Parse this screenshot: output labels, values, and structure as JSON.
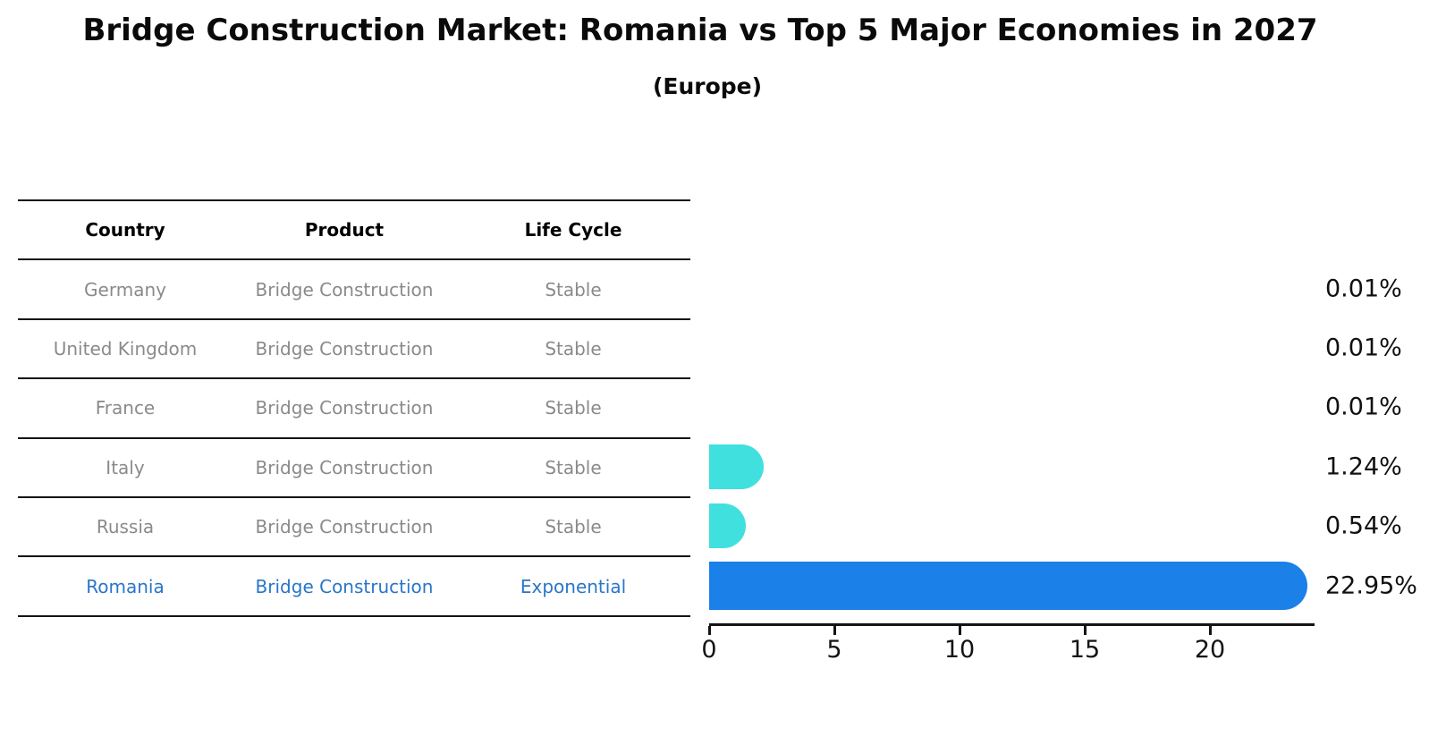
{
  "title": "Bridge Construction Market: Romania vs Top 5 Major Economies in 2027",
  "subtitle": "(Europe)",
  "table": {
    "headers": [
      "Country",
      "Product",
      "Life Cycle"
    ],
    "rows": [
      {
        "country": "Germany",
        "product": "Bridge Construction",
        "life_cycle": "Stable",
        "highlight": false
      },
      {
        "country": "United Kingdom",
        "product": "Bridge Construction",
        "life_cycle": "Stable",
        "highlight": false
      },
      {
        "country": "France",
        "product": "Bridge Construction",
        "life_cycle": "Stable",
        "highlight": false
      },
      {
        "country": "Italy",
        "product": "Bridge Construction",
        "life_cycle": "Stable",
        "highlight": false
      },
      {
        "country": "Russia",
        "product": "Bridge Construction",
        "life_cycle": "Stable",
        "highlight": false
      },
      {
        "country": "Romania",
        "product": "Bridge Construction",
        "life_cycle": "Exponential",
        "highlight": true
      }
    ]
  },
  "chart_data": {
    "type": "bar",
    "orientation": "horizontal",
    "title": "Bridge Construction Market: Romania vs Top 5 Major Economies in 2027 (Europe)",
    "categories": [
      "Germany",
      "United Kingdom",
      "France",
      "Italy",
      "Russia",
      "Romania"
    ],
    "values": [
      0.01,
      0.01,
      0.01,
      1.24,
      0.54,
      22.95
    ],
    "value_labels": [
      "0.01%",
      "0.01%",
      "0.01%",
      "1.24%",
      "0.54%",
      "22.95%"
    ],
    "x_ticks": [
      0,
      5,
      10,
      15,
      20
    ],
    "xlim": [
      0,
      24.2
    ],
    "grid": false,
    "legend": "none",
    "highlight_index": 5,
    "bar_color_default": "#40e0de",
    "bar_color_highlight": "#1b80e8"
  },
  "colors": {
    "accent_blue": "#1b80e8",
    "cyan": "#40e0de",
    "highlight_text": "#2a75c7",
    "muted_text": "#8a8a8a",
    "axis": "#141414",
    "background": "#ffffff"
  }
}
